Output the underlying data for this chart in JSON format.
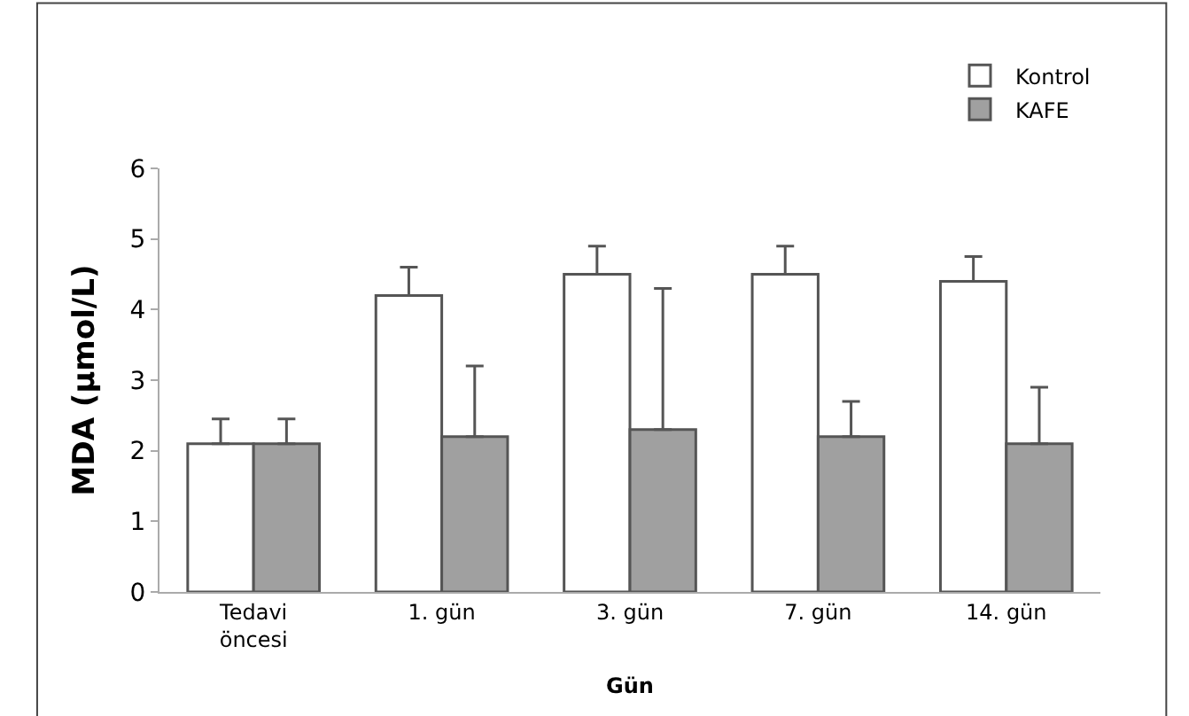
{
  "chart_data": {
    "type": "bar",
    "xlabel": "Gün",
    "ylabel": "MDA (μmol/L)",
    "categories": [
      "Tedavi\nöncesi",
      "1. gün",
      "3. gün",
      "7. gün",
      "14. gün"
    ],
    "series": [
      {
        "name": "Kontrol",
        "color": "#ffffff",
        "values": [
          2.1,
          4.2,
          4.5,
          4.5,
          4.4
        ],
        "errors": [
          [
            2.1,
            2.45
          ],
          [
            4.2,
            4.6
          ],
          [
            4.5,
            4.9
          ],
          [
            4.5,
            4.9
          ],
          [
            4.4,
            4.75
          ]
        ]
      },
      {
        "name": "KAFE",
        "color": "#a0a0a0",
        "values": [
          2.1,
          2.2,
          2.3,
          2.2,
          2.1
        ],
        "errors": [
          [
            2.1,
            2.45
          ],
          [
            2.2,
            3.2
          ],
          [
            2.3,
            4.3
          ],
          [
            2.2,
            2.7
          ],
          [
            2.1,
            2.9
          ]
        ]
      }
    ],
    "ylim": [
      0,
      6
    ],
    "yticks": [
      0,
      1,
      2,
      3,
      4,
      5,
      6
    ],
    "legend": "top right"
  }
}
